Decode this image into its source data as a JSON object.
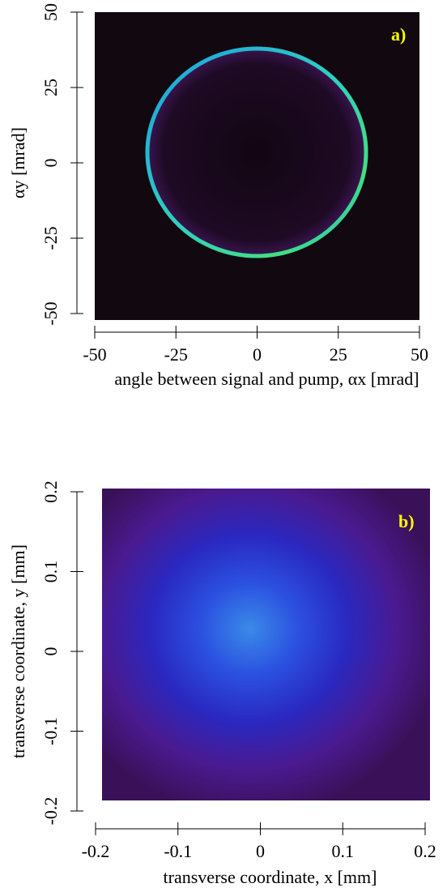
{
  "chart_data": [
    {
      "type": "heatmap",
      "panel_label": "a)",
      "xlabel": "angle between signal and pump, αx [mrad]",
      "ylabel": "αy [mrad]",
      "xlim": [
        -50,
        50
      ],
      "ylim": [
        -50,
        50
      ],
      "xticks": [
        -50,
        -25,
        0,
        25,
        50
      ],
      "yticks": [
        -50,
        -25,
        0,
        25,
        50
      ]
    },
    {
      "type": "heatmap",
      "panel_label": "b)",
      "xlabel": "transverse coordinate, x [mm]",
      "ylabel": "transverse coordinate, y [mm]",
      "xlim": [
        -0.2,
        0.2
      ],
      "ylim": [
        -0.2,
        0.2
      ],
      "xticks": [
        -0.2,
        -0.1,
        0,
        0.1,
        0.2
      ],
      "yticks": [
        -0.2,
        -0.1,
        0,
        0.1,
        0.2
      ]
    }
  ]
}
